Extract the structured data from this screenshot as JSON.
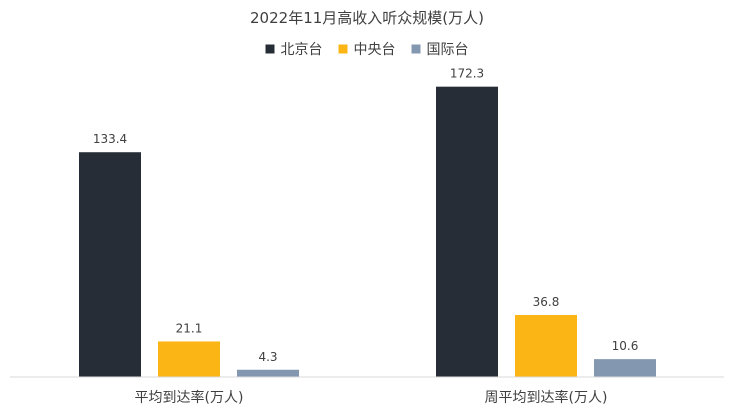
{
  "chart_data": {
    "type": "bar",
    "title": "2022年11月高收入听众规模(万人)",
    "categories": [
      "平均到达率(万人)",
      "周平均到达率(万人)"
    ],
    "series": [
      {
        "name": "北京台",
        "color": "#272d36",
        "values": [
          133.4,
          172.3
        ]
      },
      {
        "name": "中央台",
        "color": "#fbb514",
        "values": [
          21.1,
          36.8
        ]
      },
      {
        "name": "国际台",
        "color": "#8497b0",
        "values": [
          4.3,
          10.6
        ]
      }
    ],
    "data_labels": [
      [
        "133.4",
        "172.3"
      ],
      [
        "21.1",
        "36.8"
      ],
      [
        "4.3",
        "10.6"
      ]
    ],
    "ylim": [
      0,
      200
    ],
    "grid": false,
    "legend_position": "top"
  }
}
